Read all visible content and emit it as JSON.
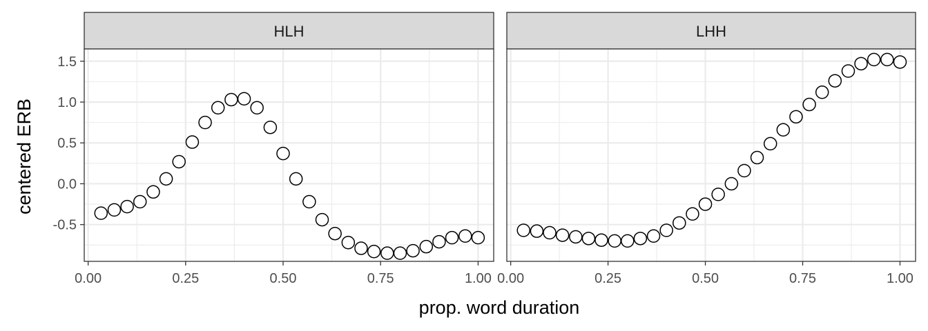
{
  "chart_data": {
    "type": "scatter",
    "xlabel": "prop. word duration",
    "ylabel": "centered ERB",
    "xlim": [
      -0.01,
      1.04
    ],
    "ylim": [
      -0.95,
      1.65
    ],
    "x_ticks": [
      0,
      0.25,
      0.5,
      0.75,
      1.0
    ],
    "x_tick_labels": [
      "0.00",
      "0.25",
      "0.50",
      "0.75",
      "1.00"
    ],
    "y_ticks": [
      -0.5,
      0,
      0.5,
      1.0,
      1.5
    ],
    "y_tick_labels": [
      "-0.5",
      "0.0",
      "0.5",
      "1.0",
      "1.5"
    ],
    "grid": true,
    "colors": {
      "strip": "#d9d9d9",
      "grid": "#ebebeb",
      "point_fill": "#ffffff",
      "point_stroke": "#000000"
    },
    "facets": [
      {
        "label": "HLH",
        "x": [
          0.033,
          0.067,
          0.1,
          0.133,
          0.167,
          0.2,
          0.233,
          0.267,
          0.3,
          0.333,
          0.367,
          0.4,
          0.433,
          0.467,
          0.5,
          0.533,
          0.567,
          0.6,
          0.633,
          0.667,
          0.7,
          0.733,
          0.767,
          0.8,
          0.833,
          0.867,
          0.9,
          0.933,
          0.967,
          1.0
        ],
        "y": [
          -0.36,
          -0.32,
          -0.28,
          -0.22,
          -0.1,
          0.06,
          0.27,
          0.51,
          0.75,
          0.93,
          1.03,
          1.04,
          0.93,
          0.69,
          0.37,
          0.06,
          -0.22,
          -0.44,
          -0.61,
          -0.72,
          -0.79,
          -0.83,
          -0.85,
          -0.85,
          -0.82,
          -0.77,
          -0.71,
          -0.66,
          -0.64,
          -0.66
        ]
      },
      {
        "label": "LHH",
        "x": [
          0.033,
          0.067,
          0.1,
          0.133,
          0.167,
          0.2,
          0.233,
          0.267,
          0.3,
          0.333,
          0.367,
          0.4,
          0.433,
          0.467,
          0.5,
          0.533,
          0.567,
          0.6,
          0.633,
          0.667,
          0.7,
          0.733,
          0.767,
          0.8,
          0.833,
          0.867,
          0.9,
          0.933,
          0.967,
          1.0
        ],
        "y": [
          -0.57,
          -0.58,
          -0.6,
          -0.63,
          -0.65,
          -0.67,
          -0.69,
          -0.7,
          -0.7,
          -0.67,
          -0.64,
          -0.57,
          -0.48,
          -0.37,
          -0.25,
          -0.13,
          0.0,
          0.16,
          0.32,
          0.49,
          0.66,
          0.82,
          0.97,
          1.12,
          1.26,
          1.38,
          1.47,
          1.52,
          1.52,
          1.49
        ]
      }
    ]
  }
}
